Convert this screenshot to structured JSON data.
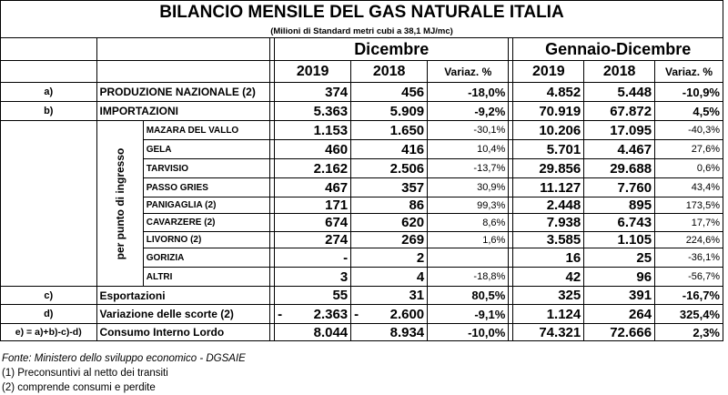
{
  "title": "BILANCIO MENSILE DEL GAS NATURALE ITALIA",
  "subtitle": "(Milioni di Standard metri cubi a 38,1 MJ/mc)",
  "period_headers": {
    "month": "Dicembre",
    "ytd": "Gennaio-Dicembre"
  },
  "year_headers": {
    "y1": "2019",
    "y2": "2018",
    "var": "Variaz. %"
  },
  "side_label": "per punto di ingresso",
  "rows": [
    {
      "label": "a)",
      "name": "PRODUZIONE NAZIONALE (2)",
      "d19": "374",
      "d18": "456",
      "dvar": "-18,0%",
      "g19": "4.852",
      "g18": "5.448",
      "gvar": "-10,9%"
    },
    {
      "label": "b)",
      "name": "IMPORTAZIONI",
      "d19": "5.363",
      "d18": "5.909",
      "dvar": "-9,2%",
      "g19": "70.919",
      "g18": "67.872",
      "gvar": "4,5%"
    }
  ],
  "entry_points": [
    {
      "name": "MAZARA DEL VALLO",
      "d19": "1.153",
      "d18": "1.650",
      "dvar": "-30,1%",
      "g19": "10.206",
      "g18": "17.095",
      "gvar": "-40,3%"
    },
    {
      "name": "GELA",
      "d19": "460",
      "d18": "416",
      "dvar": "10,4%",
      "g19": "5.701",
      "g18": "4.467",
      "gvar": "27,6%"
    },
    {
      "name": "TARVISIO",
      "d19": "2.162",
      "d18": "2.506",
      "dvar": "-13,7%",
      "g19": "29.856",
      "g18": "29.688",
      "gvar": "0,6%"
    },
    {
      "name": "PASSO GRIES",
      "d19": "467",
      "d18": "357",
      "dvar": "30,9%",
      "g19": "11.127",
      "g18": "7.760",
      "gvar": "43,4%"
    },
    {
      "name": "PANIGAGLIA (2)",
      "d19": "171",
      "d18": "86",
      "dvar": "99,3%",
      "g19": "2.448",
      "g18": "895",
      "gvar": "173,5%"
    },
    {
      "name": "CAVARZERE (2)",
      "d19": "674",
      "d18": "620",
      "dvar": "8,6%",
      "g19": "7.938",
      "g18": "6.743",
      "gvar": "17,7%"
    },
    {
      "name": "LIVORNO (2)",
      "d19": "274",
      "d18": "269",
      "dvar": "1,6%",
      "g19": "3.585",
      "g18": "1.105",
      "gvar": "224,6%"
    },
    {
      "name": "GORIZIA",
      "d19": "-",
      "d18": "2",
      "dvar": "",
      "g19": "16",
      "g18": "25",
      "gvar": "-36,1%"
    },
    {
      "name": "ALTRI",
      "d19": "3",
      "d18": "4",
      "dvar": "-18,8%",
      "g19": "42",
      "g18": "96",
      "gvar": "-56,7%"
    }
  ],
  "bottom_rows": [
    {
      "label": "c)",
      "name": "Esportazioni",
      "d19": "55",
      "d18": "31",
      "dvar": "80,5%",
      "g19": "325",
      "g18": "391",
      "gvar": "-16,7%"
    },
    {
      "label": "d)",
      "name": "Variazione delle scorte (2)",
      "d19_sign": "-",
      "d19": "2.363",
      "d18_sign": "-",
      "d18": "2.600",
      "dvar": "-9,1%",
      "g19": "1.124",
      "g18": "264",
      "gvar": "325,4%"
    },
    {
      "label": "e) = a)+b)-c)-d)",
      "name": "Consumo Interno Lordo",
      "d19": "8.044",
      "d18": "8.934",
      "dvar": "-10,0%",
      "g19": "74.321",
      "g18": "72.666",
      "gvar": "2,3%"
    }
  ],
  "notes": {
    "source": "Fonte: Ministero dello sviluppo economico - DGSAIE",
    "note1": "(1) Preconsuntivi al netto dei transiti",
    "note2": "(2) comprende consumi e perdite"
  }
}
